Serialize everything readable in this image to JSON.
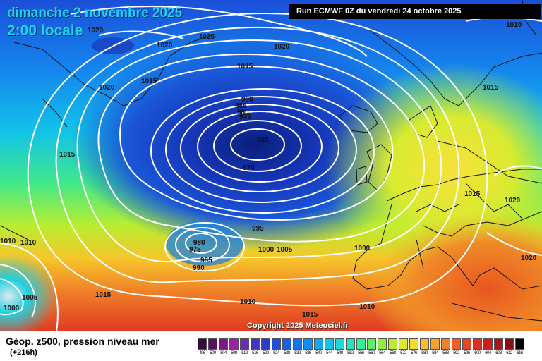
{
  "header": {
    "date": "dimanche 2 novembre 2025",
    "time": "2:00 locale",
    "run": "Run ECMWF 0Z du vendredi 24 octobre 2025"
  },
  "copyright": "Copyright 2025 Meteociel.fr",
  "legend": {
    "title": "Géop. z500, pression niveau mer",
    "subtitle": "(+216h)",
    "values": [
      "496",
      "500",
      "504",
      "508",
      "512",
      "516",
      "520",
      "524",
      "528",
      "532",
      "536",
      "540",
      "544",
      "548",
      "552",
      "556",
      "560",
      "564",
      "568",
      "572",
      "576",
      "580",
      "584",
      "588",
      "592",
      "596",
      "600",
      "604",
      "608",
      "612",
      "616"
    ],
    "colors": [
      "#3b0a3d",
      "#5a1060",
      "#7a1a85",
      "#9a24a8",
      "#6b2ab8",
      "#4633c0",
      "#2c3ec8",
      "#1f4fd6",
      "#1860e4",
      "#1274ee",
      "#0f8ef5",
      "#10a8f5",
      "#14c2ee",
      "#1ad8dc",
      "#1fe6bd",
      "#35ee95",
      "#5cf06a",
      "#8cef45",
      "#b8ee2f",
      "#dfe92a",
      "#f4d82a",
      "#f9bf2a",
      "#f9a12a",
      "#f58028",
      "#ef5f26",
      "#e84524",
      "#dd3020",
      "#c9201c",
      "#ad1618",
      "#8d0e14",
      "#000000"
    ]
  },
  "map_labels": {
    "isobars": [
      {
        "text": "1020"
      },
      {
        "text": "1025"
      },
      {
        "text": "1020"
      },
      {
        "text": "1020"
      },
      {
        "text": "1015"
      },
      {
        "text": "1015"
      },
      {
        "text": "1020"
      },
      {
        "text": "1015"
      },
      {
        "text": "990"
      },
      {
        "text": "985"
      },
      {
        "text": "980"
      },
      {
        "text": "975"
      },
      {
        "text": "965"
      },
      {
        "text": "970"
      },
      {
        "text": "1015"
      },
      {
        "text": "995"
      },
      {
        "text": "980"
      },
      {
        "text": "975"
      },
      {
        "text": "985"
      },
      {
        "text": "990"
      },
      {
        "text": "1000"
      },
      {
        "text": "1005"
      },
      {
        "text": "1000"
      },
      {
        "text": "1010"
      },
      {
        "text": "1010"
      },
      {
        "text": "1005"
      },
      {
        "text": "1000"
      },
      {
        "text": "1015"
      },
      {
        "text": "1010"
      },
      {
        "text": "1015"
      },
      {
        "text": "1010"
      },
      {
        "text": "1015"
      },
      {
        "text": "1020"
      },
      {
        "text": "1020"
      },
      {
        "text": "1010"
      },
      {
        "text": "1015"
      }
    ]
  }
}
